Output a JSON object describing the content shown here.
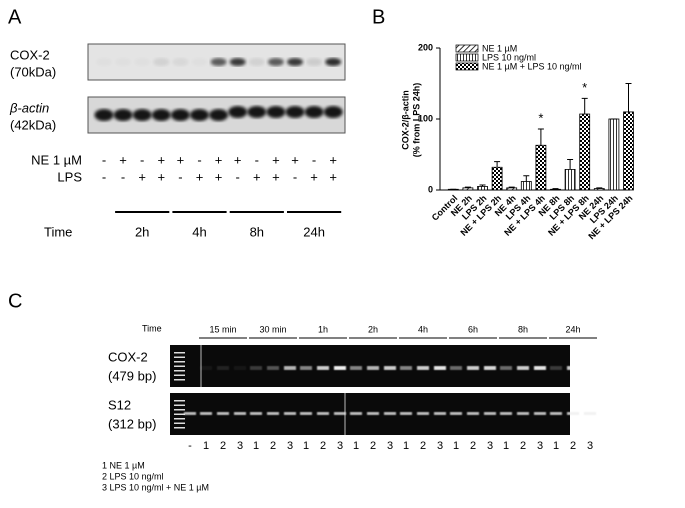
{
  "panel_a": {
    "label": "A",
    "blot_labels": [
      [
        "COX-2",
        "(70kDa)"
      ],
      [
        "β-actin",
        "(42kDa)"
      ]
    ],
    "row_labels": [
      "NE 1 µM",
      "LPS"
    ],
    "ne_signs": [
      "-",
      "+",
      "-",
      "+",
      "+",
      "-",
      "+",
      "+",
      "-",
      "+",
      "+",
      "-",
      "+"
    ],
    "lps_signs": [
      "-",
      "-",
      "+",
      "+",
      "-",
      "+",
      "+",
      "-",
      "+",
      "+",
      "-",
      "+",
      "+"
    ],
    "time_label": "Time",
    "times": [
      "2h",
      "4h",
      "8h",
      "24h"
    ]
  },
  "chart_data": {
    "type": "bar",
    "panel_label": "B",
    "y_label": [
      "COX-2/β-actin",
      "(% from LPS 24h)"
    ],
    "categories": [
      "Control",
      "NE 2h",
      "LPS 2h",
      "NE + LPS 2h",
      "NE 4h",
      "LPS 4h",
      "NE + LPS 4h",
      "NE 8h",
      "LPS 8h",
      "NE + LPS 8h",
      "NE 24h",
      "LPS 24h",
      "NE + LPS 24h"
    ],
    "values": [
      1,
      3,
      5,
      32,
      3,
      12,
      63,
      1,
      29,
      107,
      2,
      100,
      110
    ],
    "errors": [
      0,
      1,
      2,
      8,
      1,
      8,
      23,
      1,
      14,
      22,
      1,
      0,
      40
    ],
    "legend": [
      "NE 1 µM",
      "LPS 10 ng/ml",
      "NE 1 µM + LPS 10 ng/ml"
    ],
    "annotations": [
      {
        "text": "*",
        "x": "NE + LPS 4h"
      },
      {
        "text": "*",
        "x": "NE + LPS 8h"
      }
    ],
    "ylim": [
      0,
      200
    ],
    "yticks": [
      0,
      100,
      200
    ]
  },
  "panel_c": {
    "label": "C",
    "time_label": "Time",
    "times": [
      "15 min",
      "30 min",
      "1h",
      "2h",
      "4h",
      "6h",
      "8h",
      "24h"
    ],
    "gel_labels": [
      [
        "COX-2",
        "(479 bp)"
      ],
      [
        "S12",
        "(312 bp)"
      ]
    ],
    "lanes": [
      "-",
      "1",
      "2",
      "3",
      "1",
      "2",
      "3",
      "1",
      "2",
      "3",
      "1",
      "2",
      "3",
      "1",
      "2",
      "3",
      "1",
      "2",
      "3",
      "1",
      "2",
      "3",
      "1",
      "2",
      "3"
    ],
    "legend": [
      "1 NE 1 µM",
      "2 LPS 10 ng/ml",
      "3 LPS 10 ng/ml + NE 1 µM"
    ]
  }
}
